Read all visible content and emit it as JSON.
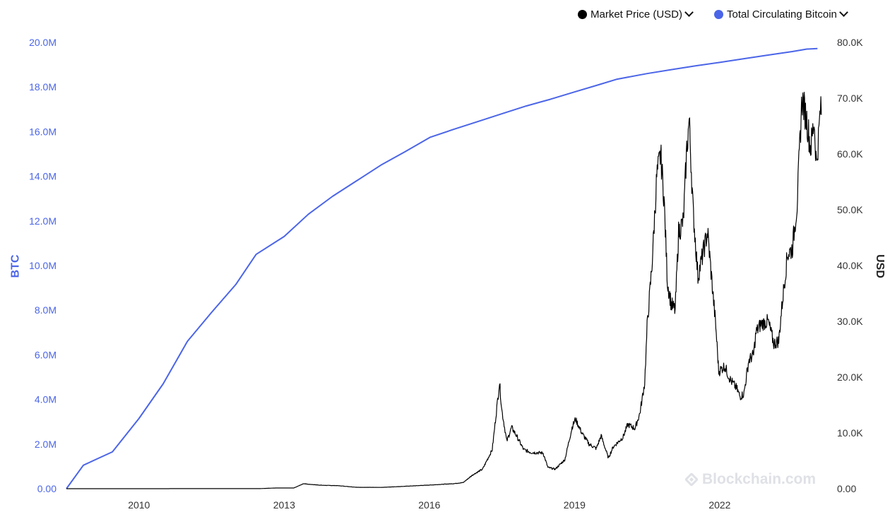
{
  "legend": {
    "price_label": "Market Price (USD)",
    "supply_label": "Total Circulating Bitcoin"
  },
  "colors": {
    "supply": "#4b65e8",
    "price": "#000000",
    "tick_left": "#4b65e8",
    "tick_right": "#333333"
  },
  "watermark": "Blockchain.com",
  "chart_data": {
    "type": "line",
    "x_ticks": [
      "2010",
      "2013",
      "2016",
      "2019",
      "2022"
    ],
    "x_range": [
      2009.0,
      2024.72
    ],
    "y_left": {
      "label": "BTC",
      "range": [
        0,
        20000000
      ],
      "ticks": [
        "0.00",
        "2.0M",
        "4.0M",
        "6.0M",
        "8.0M",
        "10.0M",
        "12.0M",
        "14.0M",
        "16.0M",
        "18.0M",
        "20.0M"
      ]
    },
    "y_right": {
      "label": "USD",
      "range": [
        0,
        80000
      ],
      "ticks": [
        "0.00",
        "10.0K",
        "20.0K",
        "30.0K",
        "40.0K",
        "50.0K",
        "60.0K",
        "70.0K",
        "80.0K"
      ]
    },
    "series": [
      {
        "name": "Total Circulating Bitcoin",
        "axis": "left",
        "points": [
          [
            2009.0,
            0
          ],
          [
            2009.35,
            1050000
          ],
          [
            2009.6,
            1300000
          ],
          [
            2009.95,
            1650000
          ],
          [
            2010.5,
            3150000
          ],
          [
            2011.0,
            4700000
          ],
          [
            2011.5,
            6600000
          ],
          [
            2012.0,
            7900000
          ],
          [
            2012.5,
            9150000
          ],
          [
            2012.92,
            10500000
          ],
          [
            2013.5,
            11300000
          ],
          [
            2014.0,
            12300000
          ],
          [
            2014.5,
            13100000
          ],
          [
            2015.0,
            13800000
          ],
          [
            2015.5,
            14500000
          ],
          [
            2016.0,
            15100000
          ],
          [
            2016.52,
            15750000
          ],
          [
            2017.0,
            16100000
          ],
          [
            2017.5,
            16450000
          ],
          [
            2018.0,
            16800000
          ],
          [
            2018.5,
            17150000
          ],
          [
            2019.0,
            17450000
          ],
          [
            2019.5,
            17780000
          ],
          [
            2020.0,
            18100000
          ],
          [
            2020.38,
            18350000
          ],
          [
            2021.0,
            18600000
          ],
          [
            2021.5,
            18780000
          ],
          [
            2022.0,
            18950000
          ],
          [
            2022.5,
            19100000
          ],
          [
            2023.0,
            19270000
          ],
          [
            2023.5,
            19430000
          ],
          [
            2024.0,
            19590000
          ],
          [
            2024.3,
            19700000
          ],
          [
            2024.52,
            19720000
          ]
        ]
      },
      {
        "name": "Market Price (USD)",
        "axis": "right",
        "points": [
          [
            2009.0,
            0
          ],
          [
            2010.5,
            0
          ],
          [
            2011.5,
            10
          ],
          [
            2012.5,
            12
          ],
          [
            2013.0,
            15
          ],
          [
            2013.3,
            120
          ],
          [
            2013.7,
            130
          ],
          [
            2013.9,
            900
          ],
          [
            2014.0,
            800
          ],
          [
            2014.3,
            600
          ],
          [
            2014.6,
            550
          ],
          [
            2015.0,
            250
          ],
          [
            2015.5,
            230
          ],
          [
            2016.0,
            430
          ],
          [
            2016.5,
            650
          ],
          [
            2017.0,
            900
          ],
          [
            2017.2,
            1100
          ],
          [
            2017.4,
            2500
          ],
          [
            2017.6,
            3500
          ],
          [
            2017.8,
            7000
          ],
          [
            2017.95,
            19000
          ],
          [
            2018.0,
            14000
          ],
          [
            2018.1,
            8500
          ],
          [
            2018.2,
            11000
          ],
          [
            2018.3,
            9500
          ],
          [
            2018.45,
            7000
          ],
          [
            2018.6,
            6500
          ],
          [
            2018.85,
            6400
          ],
          [
            2018.95,
            3800
          ],
          [
            2019.1,
            3500
          ],
          [
            2019.3,
            5200
          ],
          [
            2019.45,
            11000
          ],
          [
            2019.52,
            12500
          ],
          [
            2019.65,
            10000
          ],
          [
            2019.8,
            8000
          ],
          [
            2019.95,
            7200
          ],
          [
            2020.05,
            9500
          ],
          [
            2020.2,
            5500
          ],
          [
            2020.3,
            7500
          ],
          [
            2020.5,
            9200
          ],
          [
            2020.6,
            11500
          ],
          [
            2020.75,
            10800
          ],
          [
            2020.85,
            13500
          ],
          [
            2020.95,
            19000
          ],
          [
            2021.0,
            29000
          ],
          [
            2021.1,
            40000
          ],
          [
            2021.2,
            56000
          ],
          [
            2021.28,
            60000
          ],
          [
            2021.35,
            52000
          ],
          [
            2021.42,
            37000
          ],
          [
            2021.5,
            33000
          ],
          [
            2021.58,
            32000
          ],
          [
            2021.65,
            46000
          ],
          [
            2021.75,
            48000
          ],
          [
            2021.82,
            61000
          ],
          [
            2021.87,
            66000
          ],
          [
            2021.95,
            50000
          ],
          [
            2022.05,
            38000
          ],
          [
            2022.15,
            42000
          ],
          [
            2022.25,
            46000
          ],
          [
            2022.33,
            38000
          ],
          [
            2022.42,
            29000
          ],
          [
            2022.48,
            21000
          ],
          [
            2022.6,
            22000
          ],
          [
            2022.72,
            19500
          ],
          [
            2022.85,
            18000
          ],
          [
            2022.92,
            16500
          ],
          [
            2023.0,
            17000
          ],
          [
            2023.1,
            23000
          ],
          [
            2023.2,
            24000
          ],
          [
            2023.25,
            28000
          ],
          [
            2023.35,
            29500
          ],
          [
            2023.5,
            30000
          ],
          [
            2023.62,
            26000
          ],
          [
            2023.72,
            26500
          ],
          [
            2023.8,
            34000
          ],
          [
            2023.9,
            42000
          ],
          [
            2024.0,
            43000
          ],
          [
            2024.1,
            51000
          ],
          [
            2024.2,
            70000
          ],
          [
            2024.3,
            66000
          ],
          [
            2024.38,
            61000
          ],
          [
            2024.45,
            66000
          ],
          [
            2024.5,
            58000
          ],
          [
            2024.55,
            64000
          ],
          [
            2024.58,
            68000
          ],
          [
            2024.6,
            67000
          ]
        ]
      }
    ],
    "title": "",
    "legend_position": "top-right",
    "grid": false
  }
}
